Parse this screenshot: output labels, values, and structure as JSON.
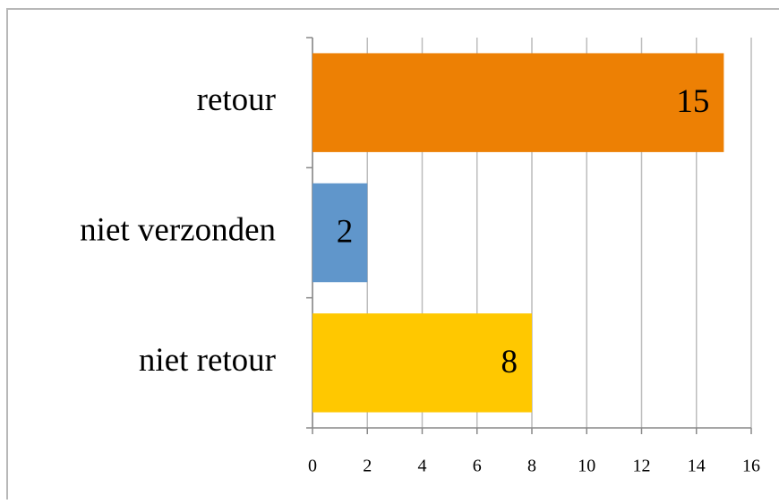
{
  "chart_data": {
    "type": "hbar",
    "categories": [
      "retour",
      "niet verzonden",
      "niet retour"
    ],
    "values": [
      15,
      2,
      8
    ],
    "colors": [
      "#ed8004",
      "#6096cb",
      "#ffc800"
    ],
    "xlim": [
      0,
      16
    ],
    "xticks": [
      0,
      2,
      4,
      6,
      8,
      10,
      12,
      14,
      16
    ],
    "grid": true
  }
}
